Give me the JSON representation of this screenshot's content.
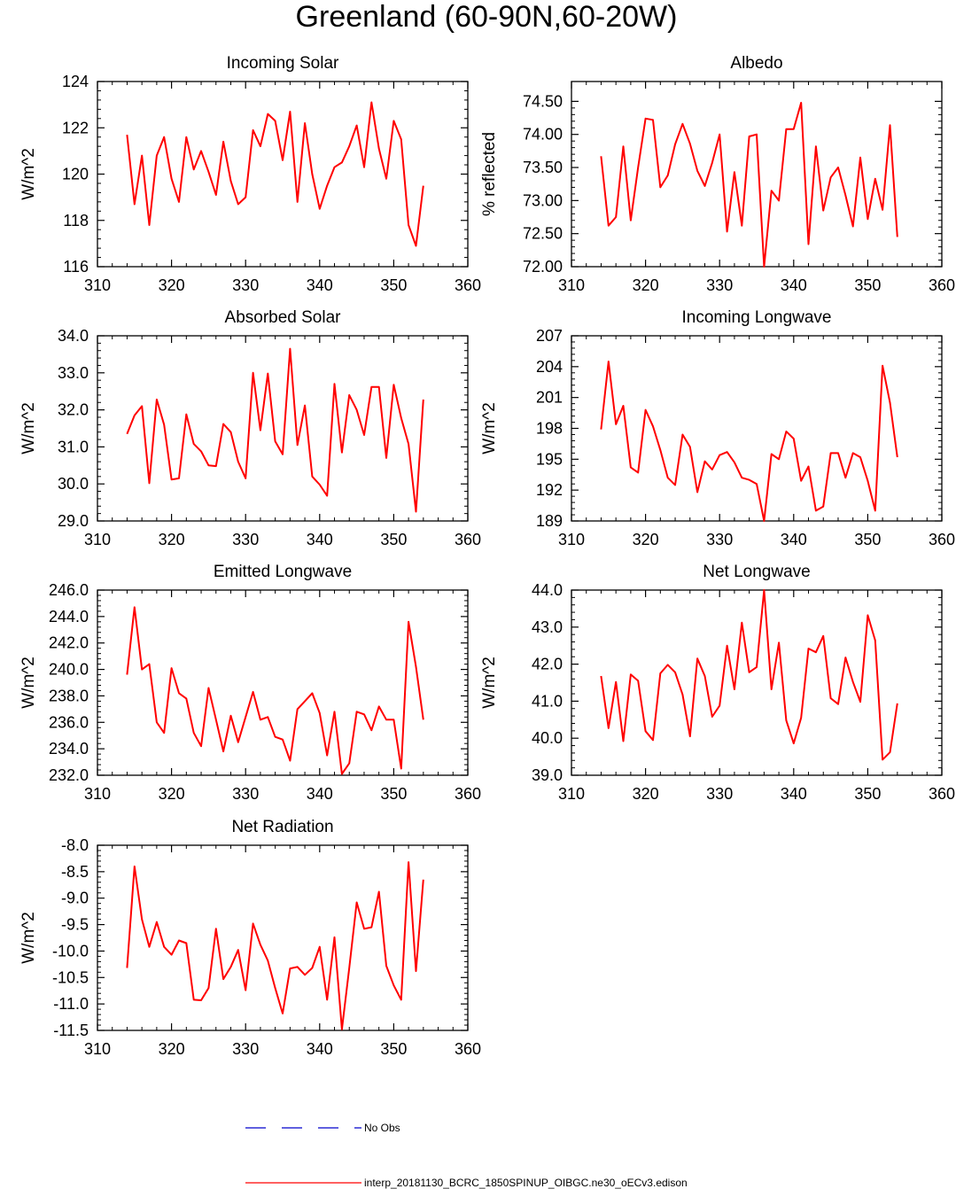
{
  "figure": {
    "title": "Greenland (60-90N,60-20W)",
    "line_color": "#ff0000",
    "obs_color": "#0000cc"
  },
  "legend": {
    "obs_label": "No Obs",
    "model_label": "interp_20181130_BCRC_1850SPINUP_OIBGC.ne30_oECv3.edison"
  },
  "chart_data": [
    {
      "type": "line",
      "title": "Incoming Solar",
      "ylabel": "W/m^2",
      "xlim": [
        310,
        360
      ],
      "ylim": [
        116,
        124
      ],
      "xticks": [
        "310",
        "320",
        "330",
        "340",
        "350",
        "360"
      ],
      "yticks": [
        "116",
        "118",
        "120",
        "122",
        "124"
      ],
      "x": [
        314,
        315,
        316,
        317,
        318,
        319,
        320,
        321,
        322,
        323,
        324,
        325,
        326,
        327,
        328,
        329,
        330,
        331,
        332,
        333,
        334,
        335,
        336,
        337,
        338,
        339,
        340,
        341,
        342,
        343,
        344,
        345,
        346,
        347,
        348,
        349,
        350,
        351,
        352,
        353,
        354
      ],
      "values": [
        121.7,
        118.7,
        120.8,
        117.8,
        120.8,
        121.6,
        119.8,
        118.8,
        121.6,
        120.2,
        121.0,
        120.1,
        119.1,
        121.4,
        119.7,
        118.7,
        119.0,
        121.9,
        121.2,
        122.6,
        122.3,
        120.6,
        122.7,
        118.8,
        122.2,
        120.0,
        118.5,
        119.5,
        120.3,
        120.5,
        121.2,
        122.1,
        120.3,
        123.1,
        121.1,
        119.8,
        122.3,
        121.5,
        117.8,
        116.9,
        119.5
      ]
    },
    {
      "type": "line",
      "title": "Albedo",
      "ylabel": "% reflected",
      "xlim": [
        310,
        360
      ],
      "ylim": [
        72.0,
        74.8
      ],
      "xticks": [
        "310",
        "320",
        "330",
        "340",
        "350",
        "360"
      ],
      "yticks": [
        "72.00",
        "72.50",
        "73.00",
        "73.50",
        "74.00",
        "74.50"
      ],
      "x": [
        314,
        315,
        316,
        317,
        318,
        319,
        320,
        321,
        322,
        323,
        324,
        325,
        326,
        327,
        328,
        329,
        330,
        331,
        332,
        333,
        334,
        335,
        336,
        337,
        338,
        339,
        340,
        341,
        342,
        343,
        344,
        345,
        346,
        347,
        348,
        349,
        350,
        351,
        352,
        353,
        354
      ],
      "values": [
        73.67,
        72.62,
        72.75,
        73.82,
        72.7,
        73.5,
        74.24,
        74.22,
        73.2,
        73.38,
        73.85,
        74.16,
        73.86,
        73.45,
        73.22,
        73.57,
        74.0,
        72.53,
        73.43,
        72.62,
        73.97,
        74.0,
        72.0,
        73.15,
        73.0,
        74.08,
        74.08,
        74.48,
        72.34,
        73.82,
        72.85,
        73.35,
        73.5,
        73.08,
        72.61,
        73.65,
        72.72,
        73.33,
        72.86,
        74.14,
        72.45
      ]
    },
    {
      "type": "line",
      "title": "Absorbed Solar",
      "ylabel": "W/m^2",
      "xlim": [
        310,
        360
      ],
      "ylim": [
        29.0,
        34.0
      ],
      "xticks": [
        "310",
        "320",
        "330",
        "340",
        "350",
        "360"
      ],
      "yticks": [
        "29.0",
        "30.0",
        "31.0",
        "32.0",
        "33.0",
        "34.0"
      ],
      "x": [
        314,
        315,
        316,
        317,
        318,
        319,
        320,
        321,
        322,
        323,
        324,
        325,
        326,
        327,
        328,
        329,
        330,
        331,
        332,
        333,
        334,
        335,
        336,
        337,
        338,
        339,
        340,
        341,
        342,
        343,
        344,
        345,
        346,
        347,
        348,
        349,
        350,
        351,
        352,
        353,
        354
      ],
      "values": [
        31.35,
        31.85,
        32.1,
        30.02,
        32.28,
        31.6,
        30.12,
        30.15,
        31.88,
        31.08,
        30.88,
        30.5,
        30.48,
        31.62,
        31.4,
        30.6,
        30.15,
        33.0,
        31.45,
        32.98,
        31.15,
        30.8,
        33.65,
        31.05,
        32.12,
        30.2,
        29.98,
        29.68,
        32.7,
        30.85,
        32.4,
        32.0,
        31.32,
        32.62,
        32.62,
        30.7,
        32.68,
        31.78,
        31.08,
        29.25,
        32.28
      ]
    },
    {
      "type": "line",
      "title": "Incoming Longwave",
      "ylabel": "W/m^2",
      "xlim": [
        310,
        360
      ],
      "ylim": [
        189,
        207
      ],
      "xticks": [
        "310",
        "320",
        "330",
        "340",
        "350",
        "360"
      ],
      "yticks": [
        "189",
        "192",
        "195",
        "198",
        "201",
        "204",
        "207"
      ],
      "x": [
        314,
        315,
        316,
        317,
        318,
        319,
        320,
        321,
        322,
        323,
        324,
        325,
        326,
        327,
        328,
        329,
        330,
        331,
        332,
        333,
        334,
        335,
        336,
        337,
        338,
        339,
        340,
        341,
        342,
        343,
        344,
        345,
        346,
        347,
        348,
        349,
        350,
        351,
        352,
        353,
        354
      ],
      "values": [
        197.9,
        204.5,
        198.4,
        200.2,
        194.2,
        193.7,
        199.8,
        198.2,
        195.9,
        193.2,
        192.5,
        197.4,
        196.2,
        191.8,
        194.8,
        194.0,
        195.4,
        195.7,
        194.7,
        193.2,
        193.0,
        192.6,
        189.0,
        195.5,
        195.0,
        197.7,
        197.0,
        192.9,
        194.3,
        190.0,
        190.4,
        195.6,
        195.6,
        193.2,
        195.6,
        195.2,
        192.9,
        190.0,
        204.1,
        200.5,
        195.2
      ]
    },
    {
      "type": "line",
      "title": "Emitted Longwave",
      "ylabel": "W/m^2",
      "xlim": [
        310,
        360
      ],
      "ylim": [
        232.0,
        246.0
      ],
      "xticks": [
        "310",
        "320",
        "330",
        "340",
        "350",
        "360"
      ],
      "yticks": [
        "232.0",
        "234.0",
        "236.0",
        "238.0",
        "240.0",
        "242.0",
        "244.0",
        "246.0"
      ],
      "x": [
        314,
        315,
        316,
        317,
        318,
        319,
        320,
        321,
        322,
        323,
        324,
        325,
        326,
        327,
        328,
        329,
        330,
        331,
        332,
        333,
        334,
        335,
        336,
        337,
        338,
        339,
        340,
        341,
        342,
        343,
        344,
        345,
        346,
        347,
        348,
        349,
        350,
        351,
        352,
        353,
        354
      ],
      "values": [
        239.6,
        244.7,
        240.0,
        240.4,
        236.0,
        235.2,
        240.1,
        238.2,
        237.8,
        235.2,
        234.2,
        238.6,
        236.2,
        233.8,
        236.5,
        234.5,
        236.4,
        238.3,
        236.2,
        236.4,
        234.9,
        234.7,
        233.1,
        237.0,
        237.6,
        238.2,
        236.7,
        233.5,
        236.8,
        232.1,
        232.9,
        236.8,
        236.6,
        235.4,
        237.2,
        236.2,
        236.2,
        232.5,
        243.6,
        240.2,
        236.2
      ]
    },
    {
      "type": "line",
      "title": "Net Longwave",
      "ylabel": "W/m^2",
      "xlim": [
        310,
        360
      ],
      "ylim": [
        39.0,
        44.0
      ],
      "xticks": [
        "310",
        "320",
        "330",
        "340",
        "350",
        "360"
      ],
      "yticks": [
        "39.0",
        "40.0",
        "41.0",
        "42.0",
        "43.0",
        "44.0"
      ],
      "x": [
        314,
        315,
        316,
        317,
        318,
        319,
        320,
        321,
        322,
        323,
        324,
        325,
        326,
        327,
        328,
        329,
        330,
        331,
        332,
        333,
        334,
        335,
        336,
        337,
        338,
        339,
        340,
        341,
        342,
        343,
        344,
        345,
        346,
        347,
        348,
        349,
        350,
        351,
        352,
        353,
        354
      ],
      "values": [
        41.68,
        40.27,
        41.52,
        39.92,
        41.72,
        41.55,
        40.19,
        39.95,
        41.75,
        41.98,
        41.78,
        41.18,
        40.05,
        42.15,
        41.68,
        40.58,
        40.88,
        42.5,
        41.32,
        43.12,
        41.78,
        41.92,
        44.0,
        41.32,
        42.58,
        40.48,
        39.86,
        40.55,
        42.42,
        42.32,
        42.76,
        41.08,
        40.92,
        42.18,
        41.52,
        40.98,
        43.32,
        42.64,
        39.42,
        39.62,
        40.94
      ]
    },
    {
      "type": "line",
      "title": "Net Radiation",
      "ylabel": "W/m^2",
      "xlim": [
        310,
        360
      ],
      "ylim": [
        -11.5,
        -8.0
      ],
      "xticks": [
        "310",
        "320",
        "330",
        "340",
        "350",
        "360"
      ],
      "yticks": [
        "-11.5",
        "-11.0",
        "-10.5",
        "-10.0",
        "-9.5",
        "-9.0",
        "-8.5",
        "-8.0"
      ],
      "x": [
        314,
        315,
        316,
        317,
        318,
        319,
        320,
        321,
        322,
        323,
        324,
        325,
        326,
        327,
        328,
        329,
        330,
        331,
        332,
        333,
        334,
        335,
        336,
        337,
        338,
        339,
        340,
        341,
        342,
        343,
        344,
        345,
        346,
        347,
        348,
        349,
        350,
        351,
        352,
        353,
        354
      ],
      "values": [
        -10.32,
        -8.4,
        -9.4,
        -9.92,
        -9.45,
        -9.92,
        -10.07,
        -9.8,
        -9.85,
        -10.92,
        -10.93,
        -10.7,
        -9.58,
        -10.53,
        -10.3,
        -9.98,
        -10.74,
        -9.48,
        -9.88,
        -10.18,
        -10.7,
        -11.18,
        -10.33,
        -10.3,
        -10.45,
        -10.32,
        -9.92,
        -10.92,
        -9.74,
        -11.48,
        -10.32,
        -9.08,
        -9.58,
        -9.55,
        -8.88,
        -10.28,
        -10.65,
        -10.92,
        -8.32,
        -10.38,
        -8.65
      ]
    }
  ]
}
